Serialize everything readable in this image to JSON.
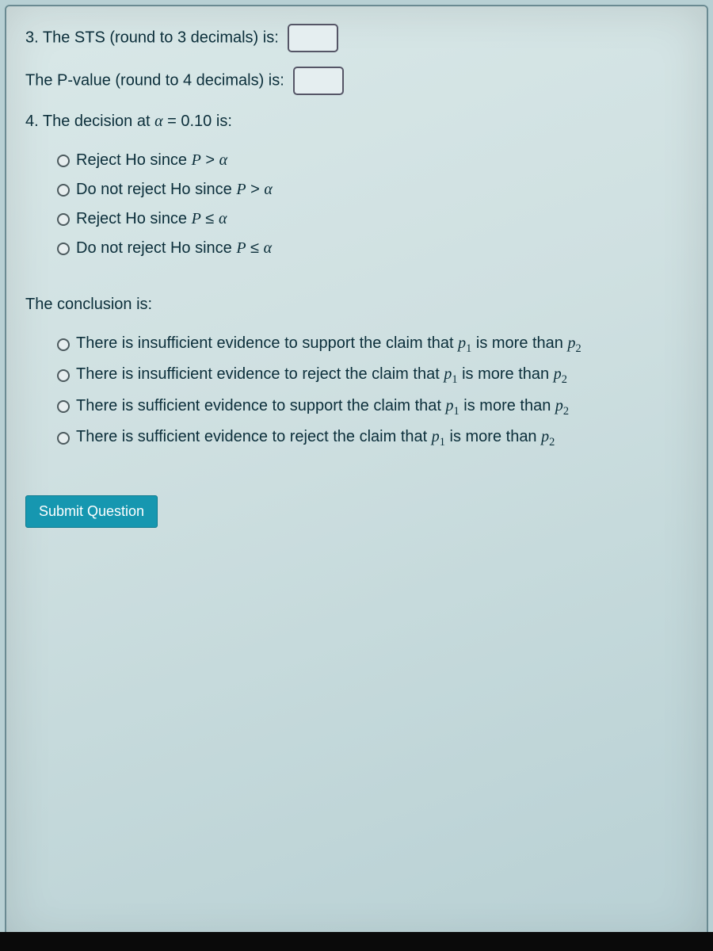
{
  "colors": {
    "page_bg": "#b8d0d4",
    "panel_border": "#6a8a92",
    "text": "#0b2e3a",
    "input_border": "#556",
    "input_bg": "#e5eef0",
    "radio_border": "#4c5a5e",
    "button_bg": "#1697b0",
    "button_text": "#ffffff",
    "bottom_bar": "#0a0a0a"
  },
  "q3": {
    "label": "3. The STS (round to 3 decimals) is:",
    "value": ""
  },
  "pvalue": {
    "label": "The P-value (round to 4 decimals) is:",
    "value": ""
  },
  "q4": {
    "prompt_prefix": "4. The decision at ",
    "alpha_sym": "α",
    "equals": " = ",
    "alpha_val": "0.10",
    "prompt_suffix": " is:",
    "options": [
      {
        "pre": "Reject Ho since ",
        "P": "P",
        "rel": " > ",
        "alpha": "α"
      },
      {
        "pre": "Do not reject Ho since ",
        "P": "P",
        "rel": " > ",
        "alpha": "α"
      },
      {
        "pre": "Reject Ho since ",
        "P": "P",
        "rel": " ≤ ",
        "alpha": "α"
      },
      {
        "pre": "Do not reject Ho since ",
        "P": "P",
        "rel": " ≤ ",
        "alpha": "α"
      }
    ]
  },
  "conclusion": {
    "prompt": "The conclusion is:",
    "options": [
      {
        "pre": "There is insufficient evidence to support the claim that ",
        "p": "p",
        "s1": "1",
        "mid": " is more than ",
        "s2": "2"
      },
      {
        "pre": "There is insufficient evidence to reject the claim that ",
        "p": "p",
        "s1": "1",
        "mid": " is more than ",
        "s2": "2"
      },
      {
        "pre": "There is sufficient evidence to support the claim that ",
        "p": "p",
        "s1": "1",
        "mid": " is more than ",
        "s2": "2"
      },
      {
        "pre": "There is sufficient evidence to reject the claim that ",
        "p": "p",
        "s1": "1",
        "mid": " is more than ",
        "s2": "2"
      }
    ]
  },
  "submit_label": "Submit Question"
}
